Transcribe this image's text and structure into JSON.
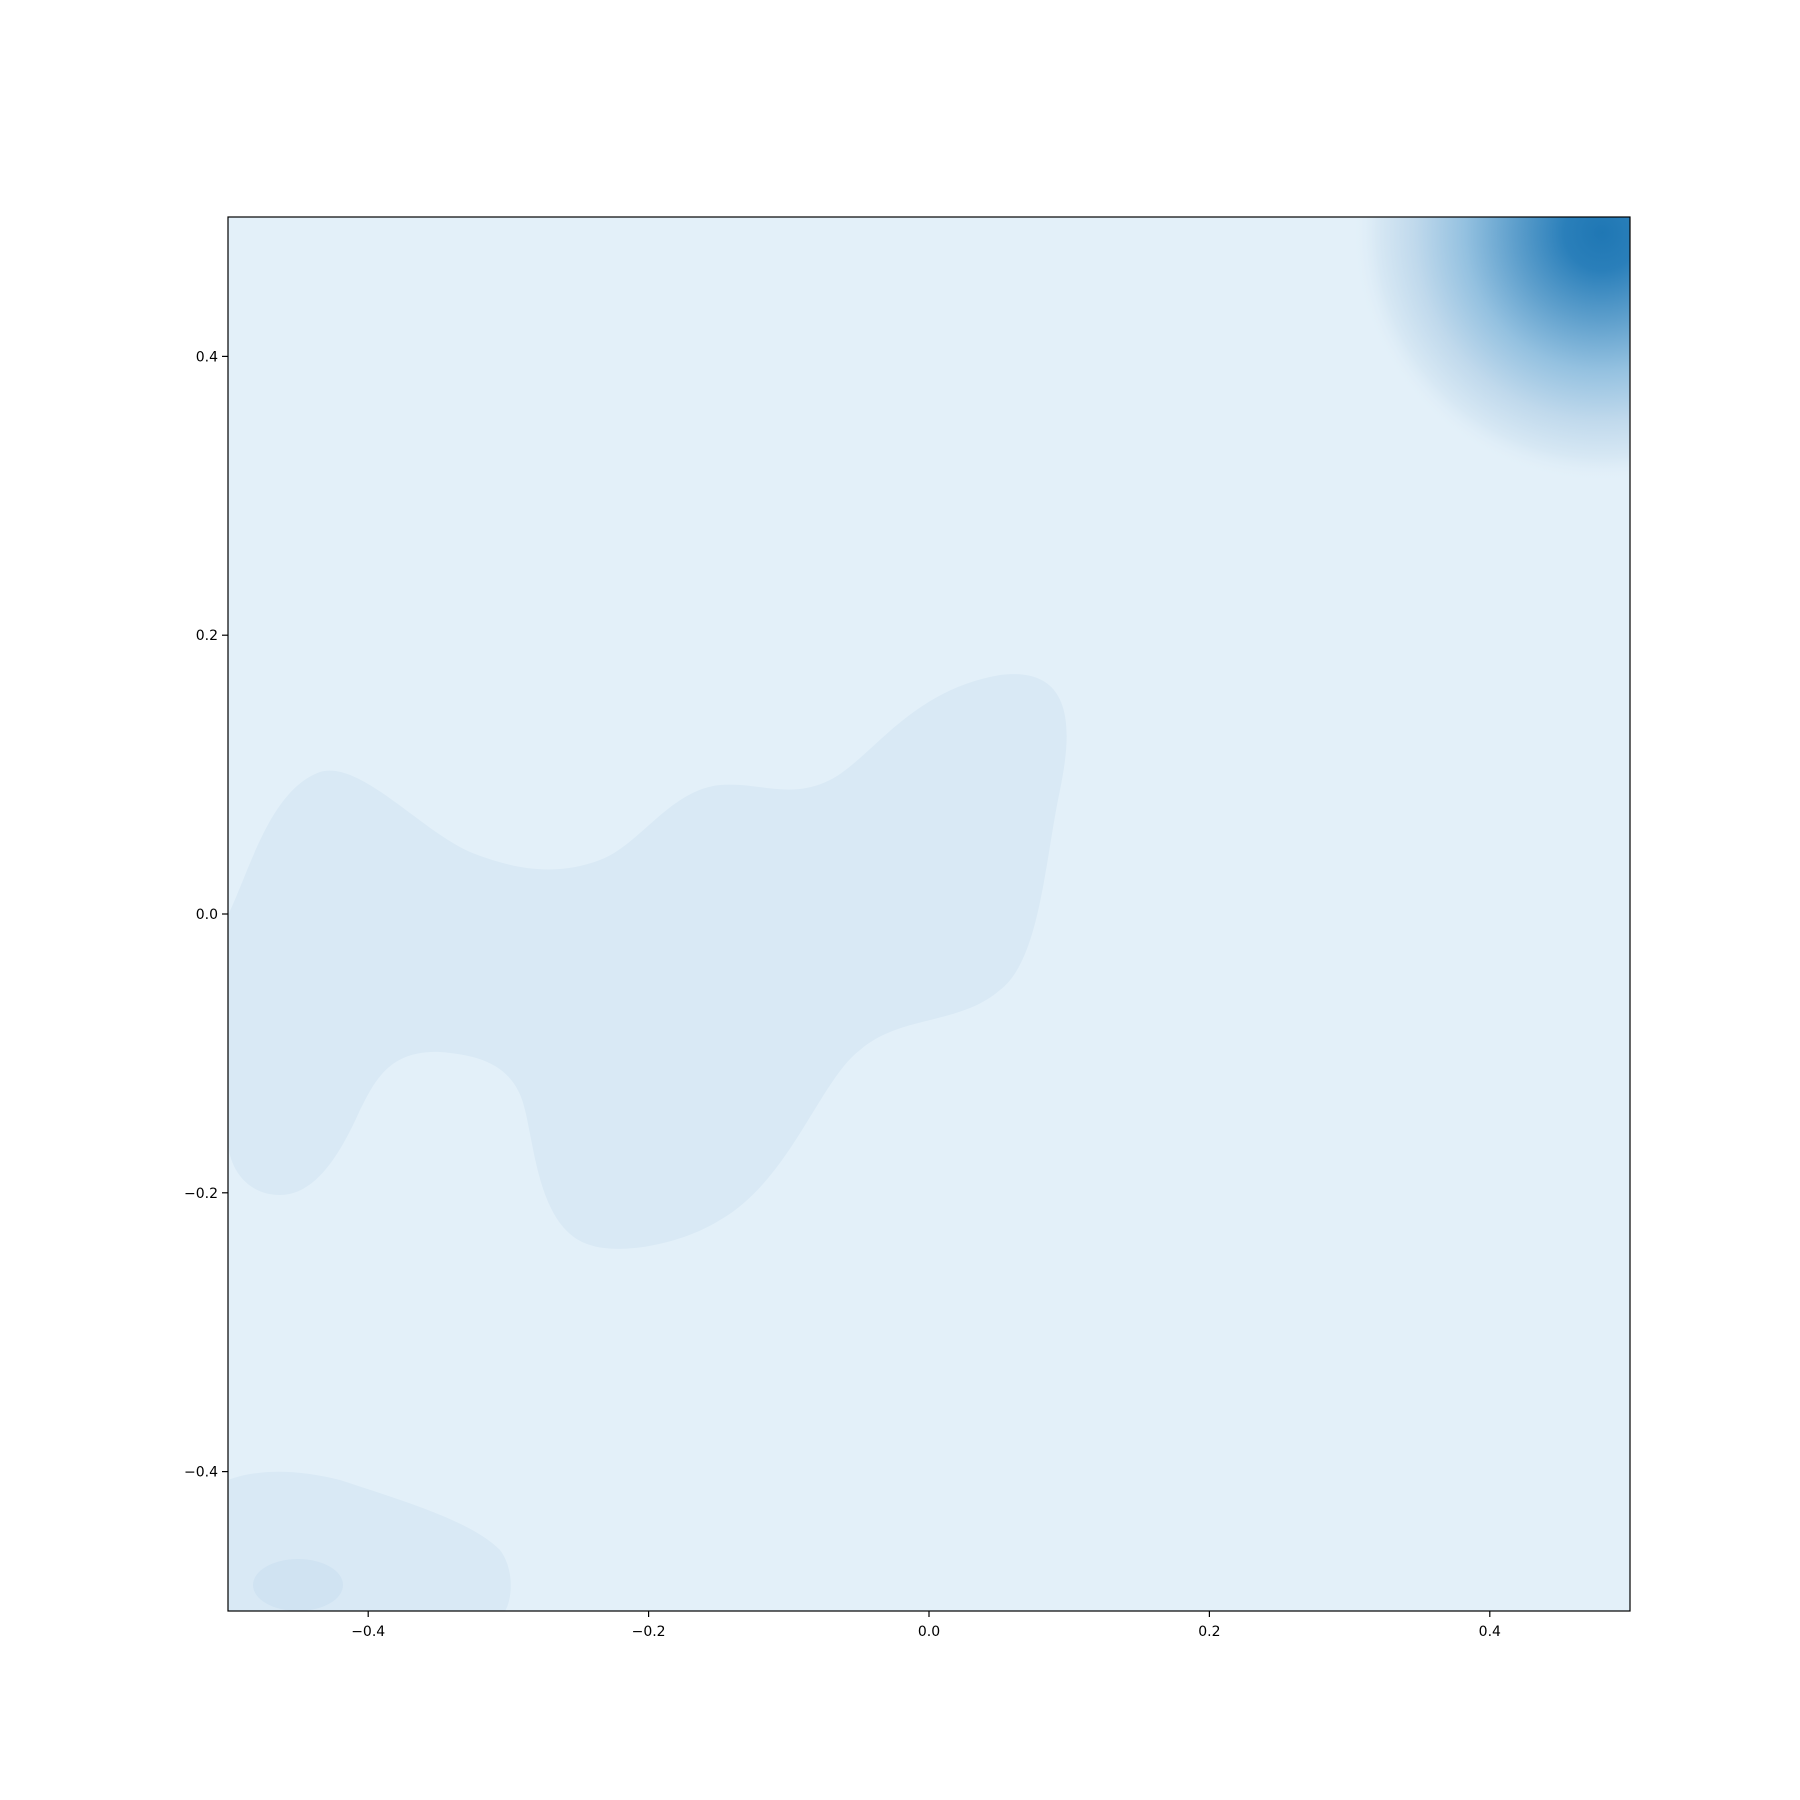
{
  "chart_data": {
    "type": "heatmap",
    "subtype": "kde-filled-contour",
    "title": "",
    "xlabel": "",
    "ylabel": "",
    "xlim": [
      -0.5,
      0.5
    ],
    "ylim": [
      -0.5,
      0.5
    ],
    "xticks": [
      -0.4,
      -0.2,
      0.0,
      0.2,
      0.4
    ],
    "yticks": [
      -0.4,
      -0.2,
      0.0,
      0.2,
      0.4
    ],
    "xtick_labels": [
      "−0.4",
      "−0.2",
      "0.0",
      "0.2",
      "0.4"
    ],
    "ytick_labels": [
      "−0.4",
      "−0.2",
      "0.0",
      "0.2",
      "0.4"
    ],
    "grid": false,
    "colormap": "Blues",
    "colors": {
      "background_level": "#e3f0f9",
      "low_level": "#d9e9f5",
      "level_2": "#d0e3f2",
      "peak": "#1f77b4"
    },
    "density_regions": [
      {
        "name": "upper-right peak",
        "center": [
          0.5,
          0.49
        ],
        "level": "max"
      },
      {
        "name": "central band",
        "x_range": [
          -0.5,
          0.1
        ],
        "y_range": [
          -0.24,
          0.17
        ],
        "level": 1
      },
      {
        "name": "lower-left blob",
        "x_range": [
          -0.5,
          -0.3
        ],
        "y_range": [
          -0.5,
          -0.4
        ],
        "level": 1
      },
      {
        "name": "lower-left inner",
        "center": [
          -0.45,
          -0.49
        ],
        "level": 2
      }
    ]
  }
}
